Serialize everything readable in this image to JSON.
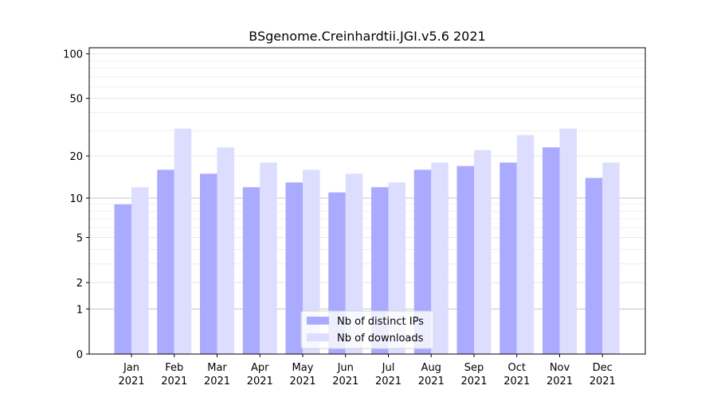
{
  "chart_data": {
    "type": "bar",
    "title": "BSgenome.Creinhardtii.JGI.v5.6 2021",
    "xlabel": "",
    "ylabel": "",
    "yscale": "log1p",
    "ylim": [
      0,
      110
    ],
    "yticks": [
      0,
      1,
      2,
      5,
      10,
      20,
      50,
      100
    ],
    "ytick_labels": [
      "0",
      "1",
      "2",
      "5",
      "10",
      "20",
      "50",
      "100"
    ],
    "categories": [
      [
        "Jan",
        "2021"
      ],
      [
        "Feb",
        "2021"
      ],
      [
        "Mar",
        "2021"
      ],
      [
        "Apr",
        "2021"
      ],
      [
        "May",
        "2021"
      ],
      [
        "Jun",
        "2021"
      ],
      [
        "Jul",
        "2021"
      ],
      [
        "Aug",
        "2021"
      ],
      [
        "Sep",
        "2021"
      ],
      [
        "Oct",
        "2021"
      ],
      [
        "Nov",
        "2021"
      ],
      [
        "Dec",
        "2021"
      ]
    ],
    "series": [
      {
        "name": "Nb of distinct IPs",
        "color": "#aaaaff",
        "values": [
          9,
          16,
          15,
          12,
          13,
          11,
          12,
          16,
          17,
          18,
          23,
          14
        ]
      },
      {
        "name": "Nb of downloads",
        "color": "#ddddff",
        "values": [
          12,
          31,
          23,
          18,
          16,
          15,
          13,
          18,
          22,
          28,
          31,
          18
        ]
      }
    ],
    "grid": "y",
    "legend_position": "bottom-center"
  }
}
